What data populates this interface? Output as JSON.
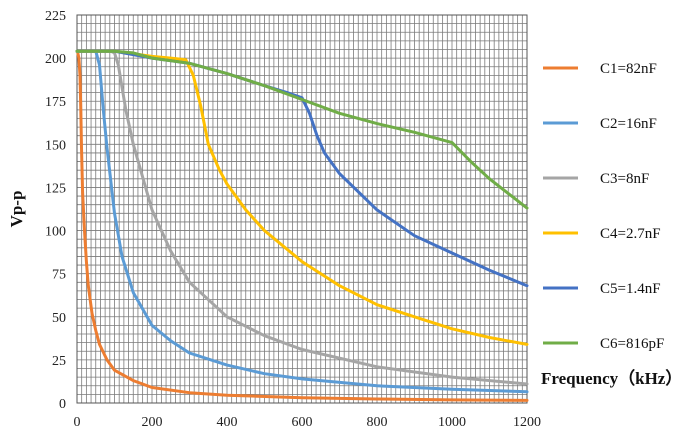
{
  "chart_data": {
    "type": "line",
    "xlabel": "Frequency（kHz）",
    "ylabel": "Vp-p",
    "xlim": [
      0,
      1200
    ],
    "ylim": [
      0,
      225
    ],
    "x_ticks": [
      0,
      200,
      400,
      600,
      800,
      1000,
      1200
    ],
    "y_ticks": [
      0,
      25,
      50,
      75,
      100,
      125,
      150,
      175,
      200,
      225
    ],
    "grid": true,
    "legend_position": "right",
    "series": [
      {
        "name": "C1=82nF",
        "color": "#ED7D31",
        "x": [
          2,
          5,
          8,
          10,
          12,
          15,
          20,
          25,
          30,
          40,
          50,
          60,
          80,
          100,
          150,
          200,
          300,
          400,
          600,
          800,
          1000,
          1200
        ],
        "y": [
          203,
          200,
          190,
          170,
          148,
          122,
          100,
          82,
          68,
          52,
          42,
          34,
          25,
          19,
          13,
          9,
          6,
          4.5,
          3,
          2.3,
          1.8,
          1.5
        ]
      },
      {
        "name": "C2=16nF",
        "color": "#5B9BD5",
        "x": [
          0,
          30,
          50,
          60,
          70,
          80,
          100,
          120,
          150,
          200,
          250,
          300,
          400,
          500,
          600,
          800,
          1000,
          1200
        ],
        "y": [
          204,
          204,
          204,
          196,
          170,
          148,
          110,
          85,
          64,
          45,
          36,
          29,
          22,
          17,
          14,
          10,
          8,
          6.5
        ]
      },
      {
        "name": "C3=8nF",
        "color": "#A5A5A5",
        "x": [
          0,
          90,
          100,
          110,
          130,
          150,
          200,
          250,
          300,
          400,
          500,
          600,
          800,
          1000,
          1200
        ],
        "y": [
          204,
          204,
          203,
          196,
          170,
          150,
          112,
          88,
          70,
          50,
          39,
          31,
          21,
          15,
          11
        ]
      },
      {
        "name": "C4=2.7nF",
        "color": "#FFC000",
        "x": [
          0,
          100,
          200,
          250,
          290,
          310,
          330,
          350,
          380,
          400,
          450,
          500,
          600,
          700,
          800,
          900,
          1000,
          1100,
          1200
        ],
        "y": [
          204,
          204,
          201,
          200,
          199,
          190,
          172,
          150,
          135,
          127,
          112,
          100,
          82,
          68,
          57,
          50,
          43,
          38,
          34
        ]
      },
      {
        "name": "C5=1.4nF",
        "color": "#4472C4",
        "x": [
          0,
          100,
          200,
          300,
          400,
          500,
          560,
          600,
          620,
          640,
          660,
          700,
          800,
          900,
          1000,
          1100,
          1200
        ],
        "y": [
          204,
          204,
          200,
          197,
          191,
          184,
          180,
          177,
          168,
          155,
          145,
          133,
          112,
          97,
          87,
          77,
          68
        ]
      },
      {
        "name": "C6=816pF",
        "color": "#70AD47",
        "x": [
          0,
          100,
          150,
          200,
          300,
          400,
          500,
          600,
          700,
          800,
          900,
          1000,
          1050,
          1100,
          1200
        ],
        "y": [
          204,
          204,
          203,
          200,
          197,
          191,
          184,
          176,
          168,
          162,
          157,
          151,
          140,
          130,
          113
        ]
      }
    ]
  }
}
